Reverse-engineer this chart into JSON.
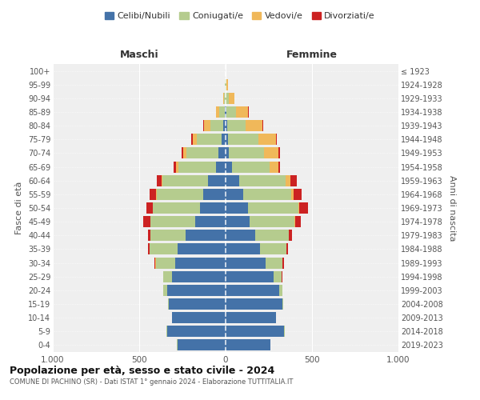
{
  "age_groups": [
    "0-4",
    "5-9",
    "10-14",
    "15-19",
    "20-24",
    "25-29",
    "30-34",
    "35-39",
    "40-44",
    "45-49",
    "50-54",
    "55-59",
    "60-64",
    "65-69",
    "70-74",
    "75-79",
    "80-84",
    "85-89",
    "90-94",
    "95-99",
    "100+"
  ],
  "birth_years": [
    "2019-2023",
    "2014-2018",
    "2009-2013",
    "2004-2008",
    "1999-2003",
    "1994-1998",
    "1989-1993",
    "1984-1988",
    "1979-1983",
    "1974-1978",
    "1969-1973",
    "1964-1968",
    "1959-1963",
    "1954-1958",
    "1949-1953",
    "1944-1948",
    "1939-1943",
    "1934-1938",
    "1929-1933",
    "1924-1928",
    "≤ 1923"
  ],
  "colors": {
    "celibi": "#4472a8",
    "coniugati": "#b5cc8e",
    "vedovi": "#f0b85a",
    "divorziati": "#cc2222"
  },
  "maschi": {
    "celibi": [
      280,
      340,
      310,
      330,
      340,
      310,
      290,
      280,
      230,
      175,
      150,
      130,
      100,
      55,
      40,
      25,
      15,
      5,
      2,
      2,
      1
    ],
    "coniugati": [
      1,
      2,
      2,
      5,
      20,
      50,
      115,
      160,
      205,
      260,
      270,
      270,
      265,
      220,
      185,
      140,
      75,
      30,
      5,
      2,
      0
    ],
    "vedovi": [
      0,
      0,
      0,
      0,
      1,
      1,
      1,
      1,
      1,
      2,
      3,
      4,
      5,
      12,
      20,
      25,
      35,
      20,
      8,
      1,
      0
    ],
    "divorziati": [
      0,
      0,
      0,
      0,
      1,
      2,
      5,
      10,
      15,
      40,
      35,
      35,
      30,
      12,
      10,
      8,
      3,
      2,
      1,
      0,
      0
    ]
  },
  "femmine": {
    "celibi": [
      260,
      340,
      290,
      330,
      310,
      280,
      230,
      200,
      170,
      140,
      130,
      100,
      80,
      35,
      20,
      15,
      8,
      5,
      2,
      2,
      1
    ],
    "coniugati": [
      1,
      2,
      2,
      5,
      20,
      45,
      100,
      150,
      195,
      260,
      290,
      280,
      265,
      220,
      200,
      175,
      110,
      55,
      15,
      3,
      0
    ],
    "vedovi": [
      0,
      0,
      0,
      0,
      0,
      1,
      1,
      1,
      2,
      4,
      8,
      15,
      30,
      50,
      85,
      100,
      95,
      70,
      35,
      10,
      1
    ],
    "divorziati": [
      0,
      0,
      0,
      0,
      1,
      2,
      5,
      10,
      15,
      30,
      50,
      45,
      35,
      12,
      10,
      5,
      3,
      2,
      1,
      0,
      0
    ]
  },
  "title": "Popolazione per età, sesso e stato civile - 2024",
  "subtitle": "COMUNE DI PACHINO (SR) - Dati ISTAT 1° gennaio 2024 - Elaborazione TUTTITALIA.IT",
  "xlabel_left": "Maschi",
  "xlabel_right": "Femmine",
  "ylabel_left": "Fasce di età",
  "ylabel_right": "Anni di nascita",
  "xlim": 1000,
  "legend_labels": [
    "Celibi/Nubili",
    "Coniugati/e",
    "Vedovi/e",
    "Divorziati/e"
  ],
  "bg_color": "#ffffff",
  "plot_bg_color": "#efefef",
  "grid_color": "#ffffff"
}
